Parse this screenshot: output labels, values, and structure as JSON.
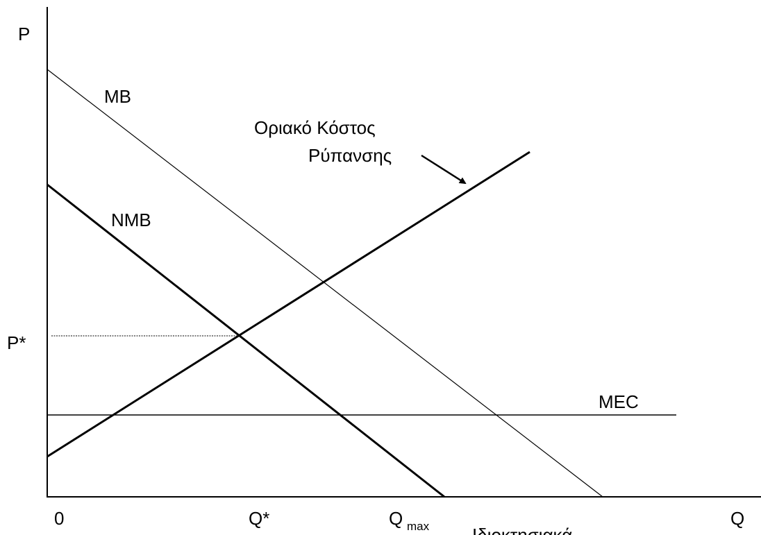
{
  "axes": {
    "y_label": "P",
    "x_label": "Q",
    "origin": "0"
  },
  "curves": {
    "mb": "MB",
    "nmb": "NMB",
    "mec": "MEC",
    "cost_line1": "Οριακό Κόστος",
    "cost_line2": "Ρύπανσης"
  },
  "points": {
    "p_star": "P*",
    "q_star": "Q*",
    "q_max_base": "Q",
    "q_max_sub": "max",
    "bottom_note": "Ιδιοκτησιακά"
  }
}
